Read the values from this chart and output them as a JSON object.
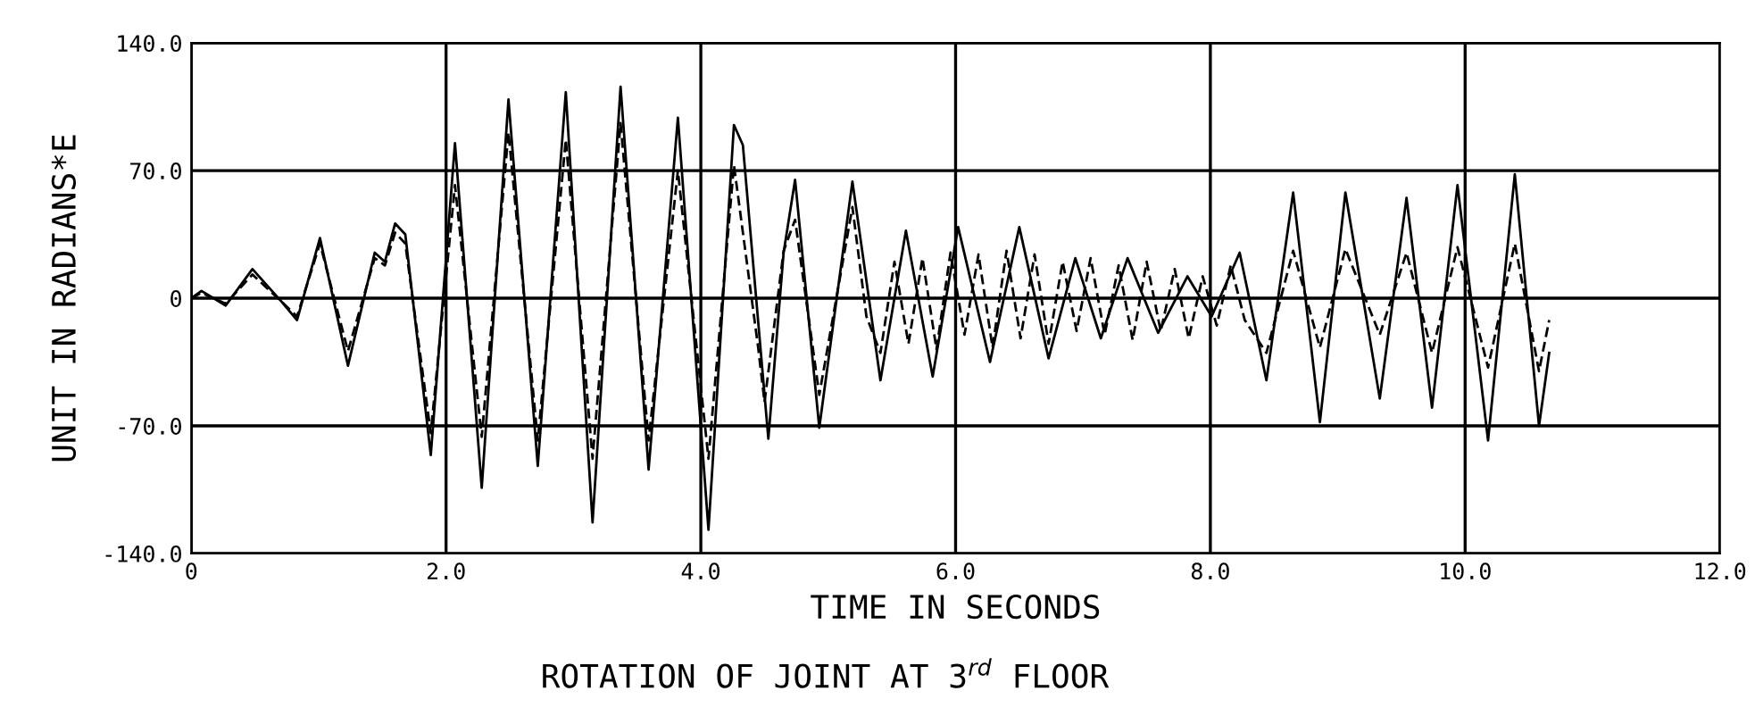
{
  "chart_data": {
    "type": "line",
    "title": "ROTATION OF JOINT AT 3$^{rd}$ FLOOR",
    "xlabel": "TIME IN SECONDS",
    "ylabel": "UNIT IN RADIANS*E",
    "xlim": [
      0,
      12
    ],
    "ylim": [
      -140,
      140
    ],
    "xticks": [
      0,
      {
        "value": 2,
        "label": "2.0"
      },
      {
        "value": 4,
        "label": "4.0"
      },
      {
        "value": 6,
        "label": "6.0"
      },
      {
        "value": 8,
        "label": "8.0"
      },
      {
        "value": 10,
        "label": "10.0"
      },
      {
        "value": 12,
        "label": "12.0"
      }
    ],
    "yticks": [
      {
        "value": -140,
        "label": "-140.0"
      },
      {
        "value": -70,
        "label": "-70.0"
      },
      0,
      {
        "value": 70,
        "label": "70.0"
      },
      {
        "value": 140,
        "label": "140.0"
      }
    ],
    "grid": true,
    "legend": false,
    "series": [
      {
        "color": "#000000",
        "line_style": "solid",
        "x": [
          0,
          0.08,
          0.27,
          0.48,
          0.71,
          0.83,
          1.01,
          1.23,
          1.44,
          1.52,
          1.6,
          1.68,
          1.88,
          2.07,
          2.28,
          2.49,
          2.72,
          2.94,
          3.15,
          3.37,
          3.59,
          3.82,
          4.06,
          4.26,
          4.33,
          4.53,
          4.65,
          4.74,
          4.93,
          5.19,
          5.41,
          5.61,
          5.82,
          6.02,
          6.27,
          6.5,
          6.73,
          6.94,
          7.14,
          7.35,
          7.59,
          7.82,
          8.01,
          8.23,
          8.44,
          8.65,
          8.86,
          9.06,
          9.33,
          9.54,
          9.74,
          9.94,
          10.18,
          10.39,
          10.58,
          10.66
        ],
        "values": [
          0,
          4,
          -4,
          16,
          -2,
          -12,
          33,
          -37,
          25,
          20,
          41,
          35,
          -86,
          85,
          -104,
          109,
          -92,
          113,
          -123,
          116,
          -94,
          99,
          -127,
          95,
          84,
          -77,
          25,
          65,
          -71,
          64,
          -45,
          37,
          -43,
          39,
          -35,
          39,
          -33,
          22,
          -22,
          22,
          -19,
          12,
          -10,
          25,
          -45,
          58,
          -68,
          58,
          -55,
          55,
          -60,
          62,
          -78,
          68,
          -70,
          -30
        ]
      },
      {
        "color": "#000000",
        "line_style": "dashed",
        "x": [
          0,
          0.08,
          0.27,
          0.48,
          0.71,
          0.83,
          1.01,
          1.23,
          1.44,
          1.52,
          1.6,
          1.68,
          1.88,
          2.07,
          2.28,
          2.49,
          2.72,
          2.94,
          3.15,
          3.37,
          3.59,
          3.82,
          4.06,
          4.26,
          4.45,
          4.5,
          4.65,
          4.74,
          4.93,
          5.19,
          5.3,
          5.41,
          5.52,
          5.63,
          5.74,
          5.85,
          5.96,
          6.07,
          6.18,
          6.29,
          6.4,
          6.51,
          6.62,
          6.73,
          6.84,
          6.95,
          7.06,
          7.17,
          7.28,
          7.39,
          7.5,
          7.61,
          7.72,
          7.83,
          7.94,
          8.05,
          8.16,
          8.27,
          8.44,
          8.65,
          8.86,
          9.06,
          9.33,
          9.54,
          9.74,
          9.94,
          10.18,
          10.39,
          10.58,
          10.66
        ],
        "values": [
          0,
          3,
          -3,
          13,
          -2,
          -10,
          30,
          -29,
          22,
          18,
          36,
          30,
          -74,
          62,
          -76,
          91,
          -78,
          87,
          -88,
          96,
          -78,
          70,
          -88,
          73,
          -27,
          -57,
          26,
          43,
          -53,
          50,
          -10,
          -30,
          20,
          -25,
          22,
          -28,
          25,
          -20,
          24,
          -27,
          26,
          -22,
          24,
          -25,
          20,
          -18,
          22,
          -20,
          18,
          -23,
          20,
          -18,
          16,
          -22,
          12,
          -15,
          18,
          -12,
          -30,
          26,
          -27,
          27,
          -20,
          25,
          -30,
          28,
          -38,
          30,
          -40,
          -12
        ]
      }
    ]
  }
}
